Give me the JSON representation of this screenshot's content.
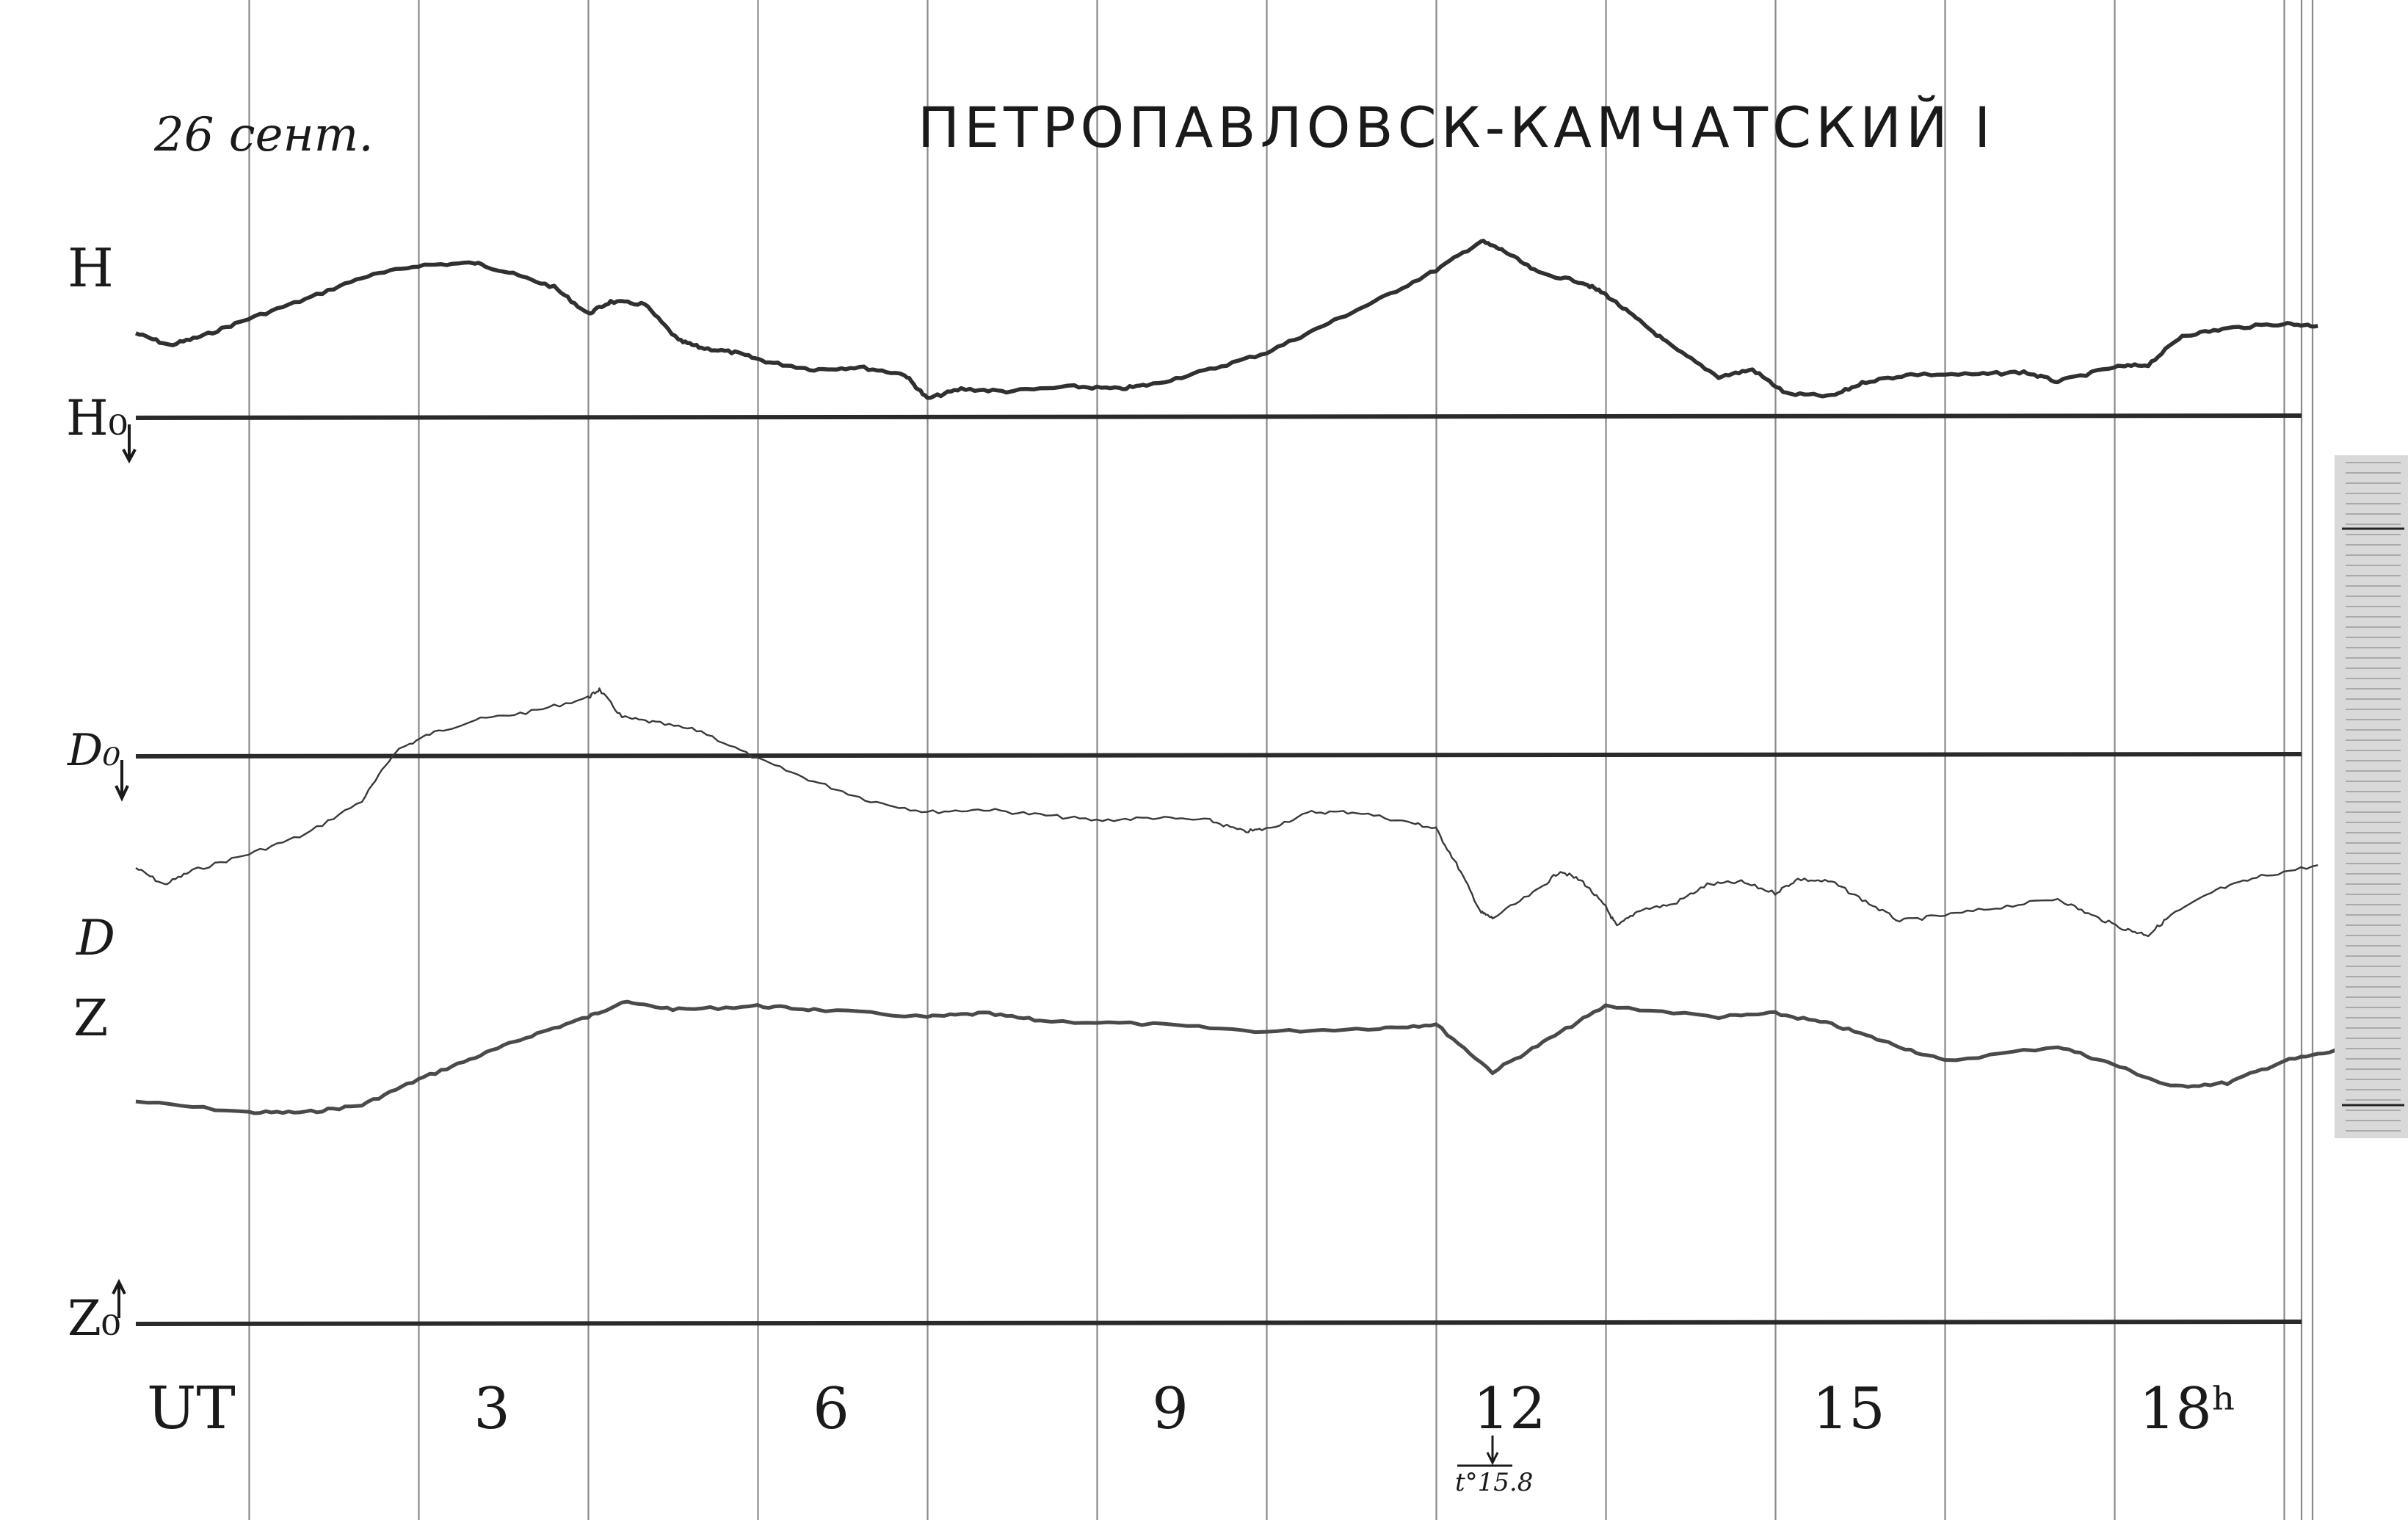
{
  "page": {
    "date": "26 сент.",
    "title": "ПЕТРОПАВЛОВСК-КАМЧАТСКИЙ I"
  },
  "chart_data": {
    "type": "line",
    "title": "ПЕТРОПАВЛОВСК-КАМЧАТСКИЙ I",
    "xlabel": "UT",
    "x_tick_labels": [
      "3",
      "6",
      "9",
      "12",
      "15",
      "18ʰ"
    ],
    "x_ticks": [
      3,
      6,
      9,
      12,
      15,
      18
    ],
    "xlim": [
      0,
      19.55
    ],
    "grid": true,
    "annotation": {
      "text": "t°15.8",
      "x": 12
    },
    "series": [
      {
        "name": "H",
        "label": "H",
        "baseline_label": "H₀",
        "x": [
          0,
          0.3,
          0.6,
          1,
          1.5,
          2,
          2.5,
          3,
          3.3,
          3.7,
          4,
          4.2,
          4.5,
          4.8,
          5,
          5.3,
          5.6,
          6,
          6.4,
          6.8,
          7,
          7.3,
          7.7,
          8.3,
          8.7,
          9,
          9.5,
          10,
          10.5,
          11,
          11.5,
          11.9,
          12.1,
          12.4,
          12.8,
          13,
          13.3,
          13.6,
          14,
          14.3,
          14.6,
          15,
          15.3,
          15.7,
          16.3,
          16.7,
          17,
          17.5,
          17.8,
          18.1,
          18.5,
          19,
          19.3
        ],
        "values": [
          3.4,
          2.9,
          3.3,
          4.0,
          4.8,
          5.7,
          6.2,
          6.3,
          5.9,
          5.3,
          4.2,
          4.7,
          4.6,
          3.1,
          2.8,
          2.6,
          2.2,
          1.9,
          2.0,
          1.7,
          0.7,
          1.1,
          1.0,
          1.2,
          1.1,
          1.3,
          1.9,
          2.6,
          3.7,
          4.8,
          6.0,
          7.2,
          6.8,
          5.9,
          5.5,
          5.0,
          3.9,
          2.8,
          1.6,
          1.9,
          0.9,
          0.8,
          1.4,
          1.7,
          1.7,
          1.8,
          1.4,
          2.0,
          2.1,
          3.3,
          3.6,
          3.8,
          3.7
        ]
      },
      {
        "name": "D",
        "label": "D",
        "baseline_label": "D₀",
        "x": [
          0,
          0.25,
          0.5,
          1,
          1.5,
          2,
          2.3,
          2.6,
          3,
          3.5,
          4,
          4.1,
          4.3,
          4.6,
          5,
          5.5,
          6,
          6.5,
          7,
          7.5,
          8,
          8.5,
          9,
          9.5,
          9.8,
          10,
          10.4,
          10.8,
          11.3,
          11.5,
          11.7,
          11.9,
          12,
          12.4,
          12.6,
          12.8,
          13,
          13.1,
          13.3,
          13.6,
          13.9,
          14.2,
          14.5,
          14.7,
          15,
          15.3,
          15.6,
          16,
          16.5,
          17,
          17.3,
          17.6,
          17.8,
          18,
          18.4,
          18.8,
          19.3
        ],
        "values": [
          -4.0,
          -4.6,
          -4.1,
          -3.5,
          -2.8,
          -1.6,
          0.2,
          0.8,
          1.3,
          1.6,
          2.1,
          2.4,
          1.4,
          1.2,
          0.9,
          -0.1,
          -0.9,
          -1.6,
          -2.0,
          -1.9,
          -2.1,
          -2.3,
          -2.2,
          -2.3,
          -2.7,
          -2.6,
          -2.0,
          -2.0,
          -2.4,
          -2.6,
          -4.0,
          -5.6,
          -5.8,
          -4.8,
          -4.1,
          -4.5,
          -5.4,
          -6.1,
          -5.5,
          -5.3,
          -4.6,
          -4.5,
          -4.9,
          -4.4,
          -4.5,
          -5.2,
          -5.9,
          -5.7,
          -5.4,
          -5.1,
          -5.7,
          -6.2,
          -6.4,
          -5.7,
          -4.8,
          -4.3,
          -3.9
        ]
      },
      {
        "name": "Z",
        "label": "Z",
        "baseline_label": "Z₀",
        "x": [
          0,
          1,
          1.5,
          2,
          2.5,
          3,
          3.5,
          4,
          4.3,
          4.8,
          5.5,
          6,
          7,
          7.5,
          8,
          9,
          10,
          11,
          11.5,
          12,
          12.5,
          13,
          14,
          14.5,
          15,
          15.5,
          16,
          17,
          17.5,
          18,
          18.5,
          19,
          19.5
        ],
        "values": [
          4.0,
          3.7,
          3.7,
          3.9,
          4.6,
          5.2,
          5.8,
          6.3,
          6.7,
          6.5,
          6.6,
          6.5,
          6.3,
          6.4,
          6.2,
          6.1,
          5.9,
          6.0,
          6.1,
          4.8,
          5.7,
          6.6,
          6.3,
          6.4,
          6.1,
          5.6,
          5.1,
          5.5,
          5.0,
          4.4,
          4.5,
          5.1,
          5.4
        ]
      }
    ]
  }
}
